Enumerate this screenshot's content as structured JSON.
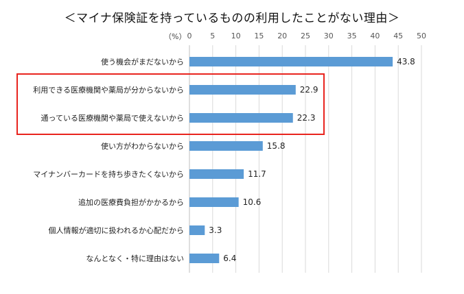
{
  "chart_data": {
    "type": "bar",
    "orientation": "horizontal",
    "title": "＜マイナ保険証を持っているものの利用したことがない理由＞",
    "unit_label": "（%）",
    "xlim": [
      0,
      50
    ],
    "x_ticks": [
      0,
      5,
      10,
      15,
      20,
      25,
      30,
      35,
      40,
      45,
      50
    ],
    "grid": true,
    "bar_color": "#5b9bd5",
    "highlight_color": "#e8231d",
    "categories": [
      "使う機会がまだないから",
      "利用できる医療機関や薬局が分からないから",
      "通っている医療機関や薬局で使えないから",
      "使い方がわからないから",
      "マイナンバーカードを持ち歩きたくないから",
      "追加の医療費負担がかかるから",
      "個人情報が適切に扱われるか心配だから",
      "なんとなく・特に理由はない"
    ],
    "values": [
      43.8,
      22.9,
      22.3,
      15.8,
      11.7,
      10.6,
      3.3,
      6.4
    ],
    "value_labels": [
      "43.8",
      "22.9",
      "22.3",
      "15.8",
      "11.7",
      "10.6",
      "3.3",
      "6.4"
    ],
    "highlighted_categories": [
      1,
      2
    ]
  }
}
